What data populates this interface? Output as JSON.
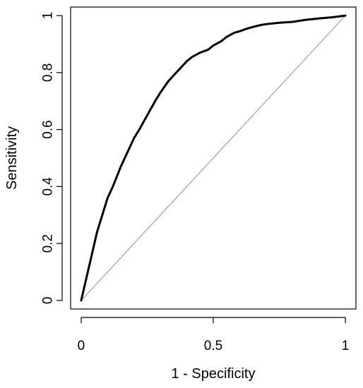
{
  "chart_data": {
    "type": "line",
    "title": "",
    "xlabel": "1 - Specificity",
    "ylabel": "Sensitivity",
    "xlim": [
      -0.04,
      1.04
    ],
    "ylim": [
      -0.03,
      1.03
    ],
    "x_ticks": [
      {
        "value": 0,
        "label": "0"
      },
      {
        "value": 0.5,
        "label": "0.5"
      },
      {
        "value": 1,
        "label": "1"
      }
    ],
    "y_ticks": [
      {
        "value": 0,
        "label": "0"
      },
      {
        "value": 0.2,
        "label": "0.2"
      },
      {
        "value": 0.4,
        "label": "0.4"
      },
      {
        "value": 0.6,
        "label": "0.6"
      },
      {
        "value": 0.8,
        "label": "0.8"
      },
      {
        "value": 1,
        "label": "1"
      }
    ],
    "grid": false,
    "legend": "none",
    "series": [
      {
        "style": "thick",
        "color": "#000000",
        "x": [
          0,
          0.02,
          0.04,
          0.06,
          0.08,
          0.1,
          0.12,
          0.15,
          0.18,
          0.2,
          0.22,
          0.25,
          0.28,
          0.3,
          0.33,
          0.35,
          0.38,
          0.4,
          0.42,
          0.45,
          0.48,
          0.5,
          0.53,
          0.55,
          0.58,
          0.6,
          0.63,
          0.65,
          0.68,
          0.7,
          0.75,
          0.8,
          0.85,
          0.9,
          0.95,
          1.0
        ],
        "y": [
          0,
          0.08,
          0.16,
          0.24,
          0.3,
          0.36,
          0.4,
          0.47,
          0.53,
          0.57,
          0.6,
          0.65,
          0.7,
          0.73,
          0.77,
          0.79,
          0.82,
          0.84,
          0.855,
          0.87,
          0.88,
          0.895,
          0.91,
          0.925,
          0.94,
          0.945,
          0.955,
          0.96,
          0.967,
          0.97,
          0.975,
          0.978,
          0.985,
          0.99,
          0.994,
          1.0
        ]
      },
      {
        "style": "reference",
        "color": "#a0a0a0",
        "x": [
          0,
          1
        ],
        "y": [
          0,
          1
        ]
      }
    ]
  }
}
